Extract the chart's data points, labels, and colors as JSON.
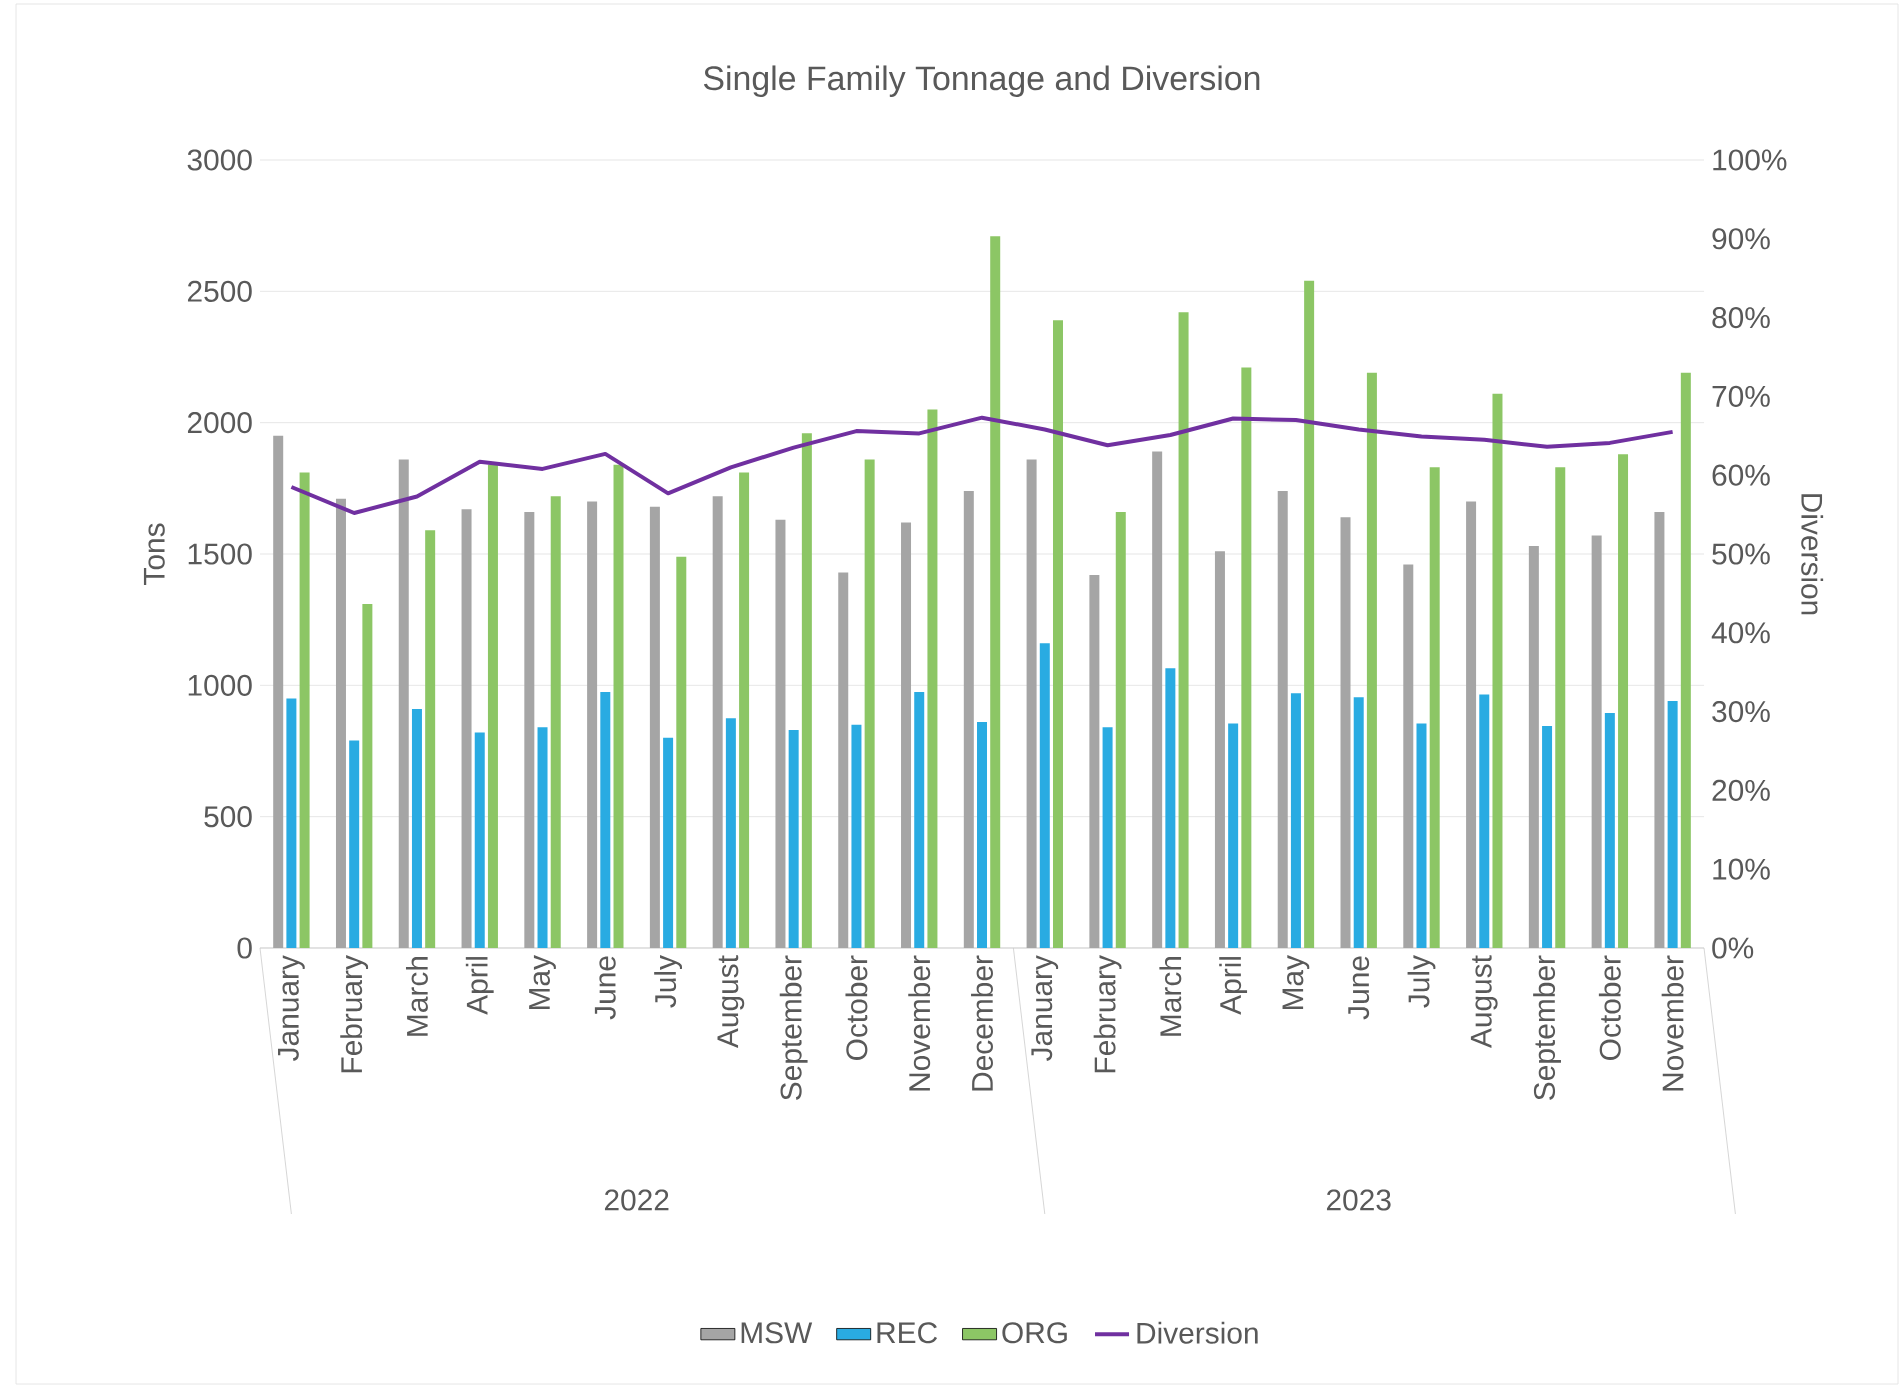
{
  "chart_data": {
    "type": "bar",
    "title": "Single Family Tonnage and Diversion",
    "xlabel": null,
    "ylabel": "Tons",
    "y2label": "Diversion",
    "categories": [
      "January",
      "February",
      "March",
      "April",
      "May",
      "June",
      "July",
      "August",
      "September",
      "October",
      "November",
      "December",
      "January",
      "February",
      "March",
      "April",
      "May",
      "June",
      "July",
      "August",
      "September",
      "October",
      "November"
    ],
    "annotations": [
      "2022",
      "2023"
    ],
    "series": [
      {
        "name": "MSW",
        "color": "#a5a5a5",
        "values": [
          1950,
          1710,
          1860,
          1670,
          1660,
          1700,
          1680,
          1720,
          1630,
          1430,
          1620,
          1740,
          1860,
          1420,
          1890,
          1510,
          1740,
          1640,
          1460,
          1700,
          1530,
          1570,
          1660
        ]
      },
      {
        "name": "REC",
        "color": "#29abe2",
        "values": [
          950,
          790,
          910,
          820,
          840,
          975,
          800,
          875,
          830,
          850,
          975,
          860,
          1160,
          840,
          1065,
          855,
          970,
          955,
          855,
          965,
          845,
          895,
          940
        ]
      },
      {
        "name": "ORG",
        "color": "#8cc665",
        "values": [
          1810,
          1310,
          1590,
          1840,
          1720,
          1840,
          1490,
          1810,
          1960,
          1860,
          2050,
          2710,
          2390,
          1660,
          2420,
          2210,
          2540,
          2190,
          1830,
          2110,
          1830,
          1880,
          2190
        ]
      },
      {
        "name": "Diversion",
        "type": "line",
        "axis": "y2",
        "color": "#7030a0",
        "values": [
          58.5,
          55.2,
          57.3,
          61.7,
          60.8,
          62.7,
          57.7,
          61.0,
          63.5,
          65.6,
          65.3,
          67.3,
          65.8,
          63.8,
          65.1,
          67.2,
          67.0,
          65.8,
          64.9,
          64.5,
          63.6,
          64.1,
          65.5
        ]
      }
    ],
    "ylim": [
      0,
      3000
    ],
    "yticks": [
      0,
      500,
      1000,
      1500,
      2000,
      2500,
      3000
    ],
    "y2lim": [
      0,
      100
    ],
    "y2ticks": [
      {
        "value": 0,
        "label": "0%"
      },
      {
        "value": 10,
        "label": "10%"
      },
      {
        "value": 20,
        "label": "20%"
      },
      {
        "value": 30,
        "label": "30%"
      },
      {
        "value": 40,
        "label": "40%"
      },
      {
        "value": 50,
        "label": "50%"
      },
      {
        "value": 60,
        "label": "60%"
      },
      {
        "value": 70,
        "label": "70%"
      },
      {
        "value": 80,
        "label": "80%"
      },
      {
        "value": 90,
        "label": "90%"
      },
      {
        "value": 100,
        "label": "100%"
      }
    ],
    "grid": "y",
    "legend": "bottom",
    "marker": "none",
    "line_style": "solid"
  }
}
